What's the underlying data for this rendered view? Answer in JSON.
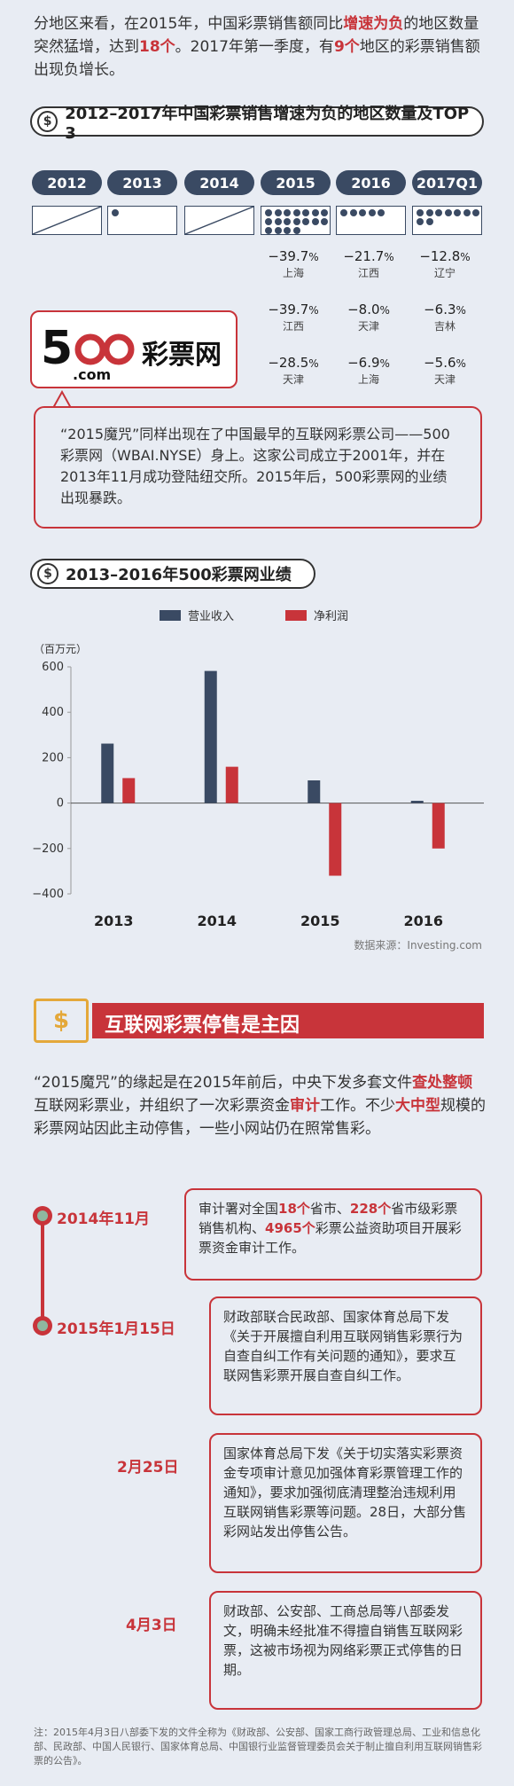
{
  "intro": {
    "p1": "分地区来看，在2015年，中国彩票销售额同比",
    "p1_red": "增速为负",
    "p2": "的地区数量突然猛增，达到",
    "p2_red": "18个",
    "p3": "。2017年第一季度，有",
    "p3_red": "9个",
    "p4": "地区的彩票销售额出现负增长。"
  },
  "section1": {
    "title": "2012–2017年中国彩票销售增速为负的地区数量及TOP 3",
    "years": [
      {
        "label": "2012",
        "count": 0
      },
      {
        "label": "2013",
        "count": 1
      },
      {
        "label": "2014",
        "count": 0
      },
      {
        "label": "2015",
        "count": 18
      },
      {
        "label": "2016",
        "count": 5
      },
      {
        "label": "2017Q1",
        "count": 9
      }
    ],
    "top3": {
      "2015": [
        {
          "v": "−39.7",
          "p": "上海"
        },
        {
          "v": "−39.7",
          "p": "江西"
        },
        {
          "v": "−28.5",
          "p": "天津"
        }
      ],
      "2016": [
        {
          "v": "−21.7",
          "p": "江西"
        },
        {
          "v": "−8.0",
          "p": "天津"
        },
        {
          "v": "−6.9",
          "p": "上海"
        }
      ],
      "2017Q1": [
        {
          "v": "−12.8",
          "p": "辽宁"
        },
        {
          "v": "−6.3",
          "p": "吉林"
        },
        {
          "v": "−5.6",
          "p": "天津"
        }
      ]
    },
    "pct": "%"
  },
  "logo": {
    "num": "500",
    "com": ".com",
    "cn": "彩票网"
  },
  "quote": "“2015魔咒”同样出现在了中国最早的互联网彩票公司——500彩票网（WBAI.NYSE）身上。这家公司成立于2001年，并在2013年11月成功登陆纽交所。2015年后，500彩票网的业绩出现暴跌。",
  "section2": {
    "title": "2013–2016年500彩票网业绩"
  },
  "chart_data": {
    "type": "bar",
    "categories": [
      "2013",
      "2014",
      "2015",
      "2016"
    ],
    "series": [
      {
        "name": "营业收入",
        "values": [
          262,
          582,
          100,
          10
        ],
        "color": "#3a4a63"
      },
      {
        "name": "净利润",
        "values": [
          110,
          160,
          -320,
          -200
        ],
        "color": "#c8343a"
      }
    ],
    "ylabel": "（百万元）",
    "ylim": [
      -400,
      600
    ],
    "yticks": [
      600,
      400,
      200,
      0,
      -200,
      -400
    ],
    "source": "数据来源：Investing.com",
    "legend": "top"
  },
  "section3": {
    "title": "互联网彩票停售是主因",
    "icon": "$"
  },
  "body2": {
    "a": "“2015魔咒”的缘起是在2015年前后，中央下发多套文件",
    "a_red": "查处整顿",
    "b": "互联网彩票业，并组织了一次彩票资金",
    "b_red": "审计",
    "c": "工作。不少",
    "c_red": "大中型",
    "d": "规模的彩票网站因此主动停售，一些小网站仍在照常售彩。"
  },
  "timeline": [
    {
      "date": "2014年11月",
      "text_a": "审计署对全国",
      "r1": "18个",
      "text_b": "省市、",
      "r2": "228个",
      "text_c": "省市级彩票销售机构、",
      "r3": "4965个",
      "text_d": "彩票公益资助项目开展彩票资金审计工作。"
    },
    {
      "date": "2015年1月15日",
      "text": "财政部联合民政部、国家体育总局下发《关于开展擅自利用互联网销售彩票行为自查自纠工作有关问题的通知》，要求互联网售彩票开展自查自纠工作。"
    },
    {
      "date": "2月25日",
      "text": "国家体育总局下发《关于切实落实彩票资金专项审计意见加强体育彩票管理工作的通知》，要求加强彻底清理整治违规利用互联网销售彩票等问题。28日，大部分售彩网站发出停售公告。"
    },
    {
      "date": "4月3日",
      "text": "财政部、公安部、工商总局等八部委发文，明确未经批准不得擅自销售互联网彩票，这被市场视为网络彩票正式停售的日期。"
    }
  ],
  "note": "注：2015年4月3日八部委下发的文件全称为《财政部、公安部、国家工商行政管理总局、工业和信息化部、民政部、中国人民银行、国家体育总局、中国银行业监督管理委员会关于制止擅自利用互联网销售彩票的公告》。",
  "colors": {
    "navy": "#3a4a63",
    "red": "#c8343a",
    "bg": "#e8ecf3",
    "gold": "#e4a83a"
  }
}
